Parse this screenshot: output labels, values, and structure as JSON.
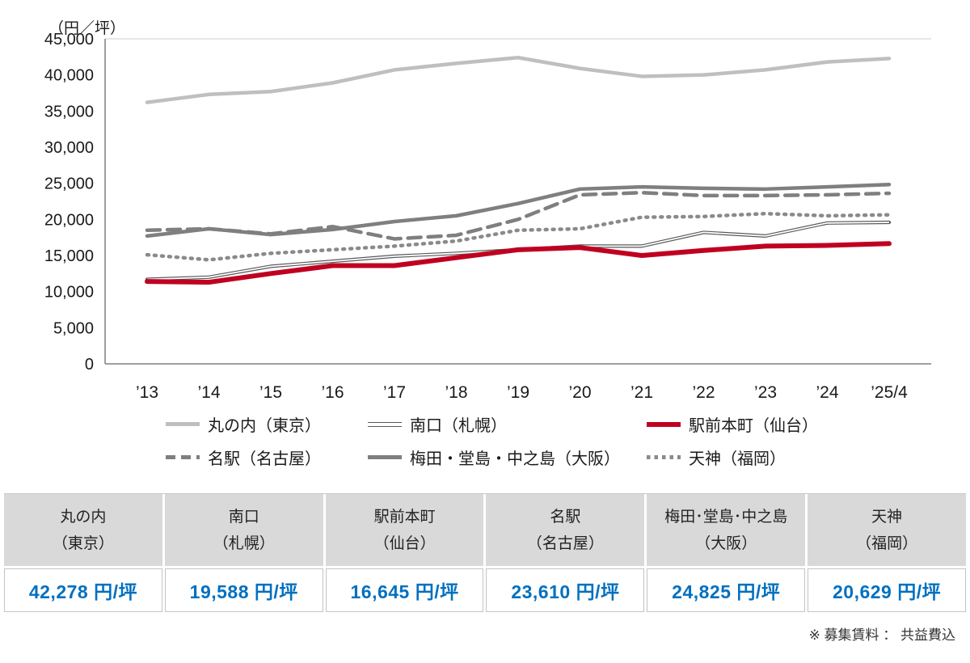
{
  "unit_label": "（円／坪）",
  "footnote": "※ 募集賃料 ： 共益費込",
  "chart_data": {
    "type": "line",
    "x": [
      "’13",
      "’14",
      "’15",
      "’16",
      "’17",
      "’18",
      "’19",
      "’20",
      "’21",
      "’22",
      "’23",
      "’24",
      "’25/4"
    ],
    "ylabel": "（円／坪）",
    "ylim": [
      0,
      45000
    ],
    "ytick_step": 5000,
    "grid": false,
    "legend_position": "bottom",
    "series": [
      {
        "name": "丸の内（東京）",
        "style": "solid",
        "color": "#bfbfbf",
        "width": 4.5,
        "values": [
          36200,
          37300,
          37700,
          38900,
          40700,
          41600,
          42400,
          40900,
          39800,
          40000,
          40700,
          41800,
          42278
        ]
      },
      {
        "name": "南口（札幌）",
        "style": "double",
        "color": "#595959",
        "width": 4.2,
        "values": [
          11700,
          12000,
          13500,
          14200,
          14900,
          15300,
          15800,
          16300,
          16300,
          18200,
          17700,
          19500,
          19588
        ]
      },
      {
        "name": "駅前本町（仙台）",
        "style": "solid",
        "color": "#c00021",
        "width": 6,
        "values": [
          11400,
          11300,
          12500,
          13600,
          13600,
          14700,
          15800,
          16100,
          15000,
          15700,
          16300,
          16400,
          16645
        ]
      },
      {
        "name": "名駅（名古屋）",
        "style": "dashed",
        "color": "#7f7f7f",
        "width": 4.5,
        "values": [
          18500,
          18700,
          18000,
          19000,
          17300,
          17800,
          20000,
          23400,
          23700,
          23300,
          23300,
          23400,
          23610
        ]
      },
      {
        "name": "梅田・堂島・中之島（大阪）",
        "style": "solid",
        "color": "#7f7f7f",
        "width": 4.5,
        "values": [
          17700,
          18700,
          17900,
          18600,
          19700,
          20500,
          22200,
          24200,
          24500,
          24300,
          24200,
          24500,
          24825
        ]
      },
      {
        "name": "天神（福岡）",
        "style": "dotted",
        "color": "#8a8a8a",
        "width": 4.5,
        "values": [
          15100,
          14400,
          15300,
          15800,
          16300,
          17000,
          18500,
          18700,
          20300,
          20400,
          20800,
          20500,
          20629
        ]
      }
    ]
  },
  "table": {
    "columns": [
      {
        "name": "丸の内",
        "city": "（東京）",
        "value": "42,278 円/坪"
      },
      {
        "name": "南口",
        "city": "（札幌）",
        "value": "19,588 円/坪"
      },
      {
        "name": "駅前本町",
        "city": "（仙台）",
        "value": "16,645 円/坪"
      },
      {
        "name": "名駅",
        "city": "（名古屋）",
        "value": "23,610 円/坪"
      },
      {
        "name": "梅田･堂島･中之島",
        "city": "（大阪）",
        "value": "24,825 円/坪"
      },
      {
        "name": "天神",
        "city": "（福岡）",
        "value": "20,629 円/坪"
      }
    ]
  }
}
